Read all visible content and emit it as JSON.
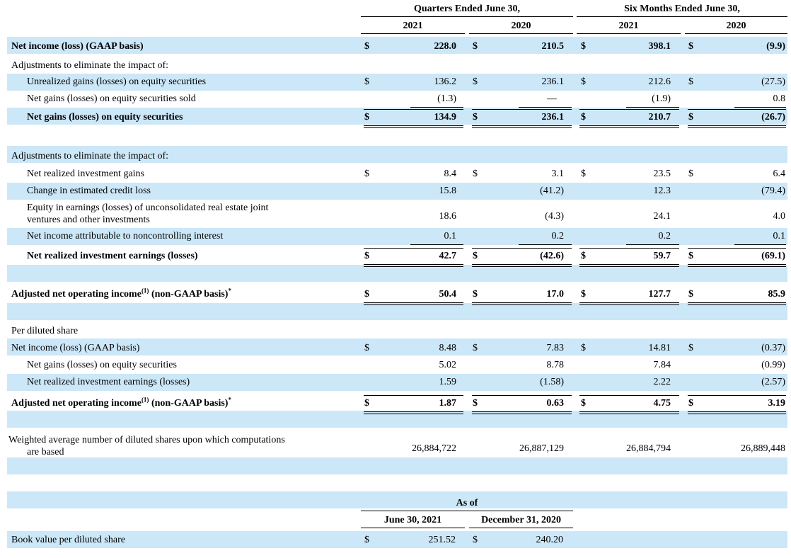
{
  "header": {
    "quarters_label": "Quarters Ended June 30,",
    "six_months_label": "Six Months Ended June 30,",
    "years": [
      "2021",
      "2020",
      "2021",
      "2020"
    ]
  },
  "rows": [
    {
      "id": "net_income",
      "label": "Net income (loss) (GAAP basis)",
      "bold": true,
      "indent": 0,
      "dollar": true,
      "values": [
        "228.0",
        "210.5",
        "398.1",
        "(9.9)"
      ]
    },
    {
      "id": "adj1",
      "label": "Adjustments to eliminate the impact of:",
      "bold": false,
      "indent": 0,
      "dollar": false,
      "values": [
        "",
        "",
        "",
        ""
      ]
    },
    {
      "id": "unrealized",
      "label": "Unrealized gains (losses) on equity securities",
      "bold": false,
      "indent": 1,
      "dollar": true,
      "values": [
        "136.2",
        "236.1",
        "212.6",
        "(27.5)"
      ]
    },
    {
      "id": "sold",
      "label": "Net gains (losses) on equity securities sold",
      "bold": false,
      "indent": 1,
      "dollar": false,
      "values": [
        "(1.3)",
        "—",
        "(1.9)",
        "0.8"
      ]
    },
    {
      "id": "net_gains",
      "label": "Net gains (losses) on equity securities",
      "bold": true,
      "indent": 1,
      "dollar": true,
      "values": [
        "134.9",
        "236.1",
        "210.7",
        "(26.7)"
      ]
    },
    {
      "id": "adj2",
      "label": "Adjustments to eliminate the impact of:",
      "bold": false,
      "indent": 0,
      "dollar": false,
      "values": [
        "",
        "",
        "",
        ""
      ]
    },
    {
      "id": "realized",
      "label": "Net realized investment gains",
      "bold": false,
      "indent": 1,
      "dollar": true,
      "values": [
        "8.4",
        "3.1",
        "23.5",
        "6.4"
      ]
    },
    {
      "id": "credit",
      "label": "Change in estimated credit loss",
      "bold": false,
      "indent": 1,
      "dollar": false,
      "values": [
        "15.8",
        "(41.2)",
        "12.3",
        "(79.4)"
      ]
    },
    {
      "id": "equity_earn",
      "label": "Equity in earnings (losses) of unconsolidated real estate joint",
      "label2": "ventures and other investments",
      "bold": false,
      "indent": 1,
      "dollar": false,
      "values": [
        "18.6",
        "(4.3)",
        "24.1",
        "4.0"
      ]
    },
    {
      "id": "nci",
      "label": "Net income attributable to noncontrolling interest",
      "bold": false,
      "indent": 1,
      "dollar": false,
      "values": [
        "0.1",
        "0.2",
        "0.2",
        "0.1"
      ]
    },
    {
      "id": "nrie",
      "label": "Net realized investment earnings (losses)",
      "bold": true,
      "indent": 1,
      "dollar": true,
      "values": [
        "42.7",
        "(42.6)",
        "59.7",
        "(69.1)"
      ]
    },
    {
      "id": "anoi",
      "label": "Adjusted net operating income",
      "sup": "(1)",
      "label_tail": " (non-GAAP basis)",
      "star": "*",
      "bold": true,
      "indent": 0,
      "dollar": true,
      "values": [
        "50.4",
        "17.0",
        "127.7",
        "85.9"
      ]
    },
    {
      "id": "pds",
      "label": "Per diluted share",
      "bold": false,
      "indent": 0,
      "dollar": false,
      "values": [
        "",
        "",
        "",
        ""
      ]
    },
    {
      "id": "ps_net_income",
      "label": "Net income (loss) (GAAP basis)",
      "bold": false,
      "indent": 0,
      "dollar": true,
      "values": [
        "8.48",
        "7.83",
        "14.81",
        "(0.37)"
      ]
    },
    {
      "id": "ps_gains",
      "label": "Net gains (losses) on equity securities",
      "bold": false,
      "indent": 1,
      "dollar": false,
      "values": [
        "5.02",
        "8.78",
        "7.84",
        "(0.99)"
      ]
    },
    {
      "id": "ps_nrie",
      "label": "Net realized investment earnings (losses)",
      "bold": false,
      "indent": 1,
      "dollar": false,
      "values": [
        "1.59",
        "(1.58)",
        "2.22",
        "(2.57)"
      ]
    },
    {
      "id": "ps_anoi",
      "label": "Adjusted net operating income",
      "sup": "(1)",
      "label_tail": " (non-GAAP basis)",
      "star": "*",
      "bold": true,
      "indent": 0,
      "dollar": true,
      "values": [
        "1.87",
        "0.63",
        "4.75",
        "3.19"
      ]
    },
    {
      "id": "shares",
      "label": "Weighted average number of diluted shares upon which computations",
      "label2": "are based",
      "bold": false,
      "indent": 0,
      "dollar": false,
      "values": [
        "26,884,722",
        "26,887,129",
        "26,884,794",
        "26,889,448"
      ]
    }
  ],
  "currency_symbol": "$",
  "book": {
    "as_of": "As of",
    "col1": "June 30, 2021",
    "col2": "December 31, 2020",
    "label": "Book value per diluted share",
    "values": [
      "251.52",
      "240.20"
    ]
  }
}
